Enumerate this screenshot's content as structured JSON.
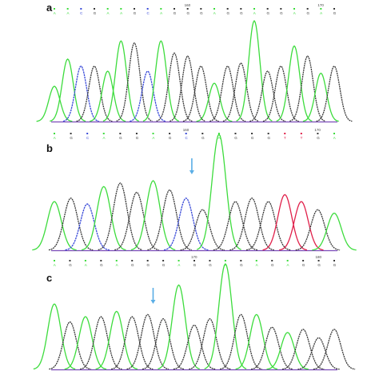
{
  "colors": {
    "A": "#3ddc3d",
    "C": "#3a4bd8",
    "G": "#3a3a3a",
    "T": "#e0204a",
    "arrow": "#5aaee6",
    "baseline": "#7a4bb8"
  },
  "chart_data": {
    "type": "line",
    "title": "",
    "xlabel": "",
    "ylabel": "",
    "legend": "none",
    "grid": false,
    "panels": [
      {
        "label": "a",
        "position_markers": [
          "",
          "",
          "",
          "",
          "",
          "",
          "",
          "",
          "",
          "",
          "",
          "",
          "",
          "",
          "",
          "",
          "",
          "",
          "",
          "",
          "",
          "",
          ""
        ],
        "marker_numbers": [
          "160",
          "170"
        ],
        "peaks": [
          {
            "base": "A",
            "h": 0.35
          },
          {
            "base": "A",
            "h": 0.62
          },
          {
            "base": "C",
            "h": 0.55
          },
          {
            "base": "G",
            "h": 0.55
          },
          {
            "base": "A",
            "h": 0.5
          },
          {
            "base": "A",
            "h": 0.8
          },
          {
            "base": "G",
            "h": 0.78
          },
          {
            "base": "C",
            "h": 0.5
          },
          {
            "base": "A",
            "h": 0.8
          },
          {
            "base": "G",
            "h": 0.68
          },
          {
            "base": "G",
            "h": 0.65
          },
          {
            "base": "G",
            "h": 0.55
          },
          {
            "base": "A",
            "h": 0.38
          },
          {
            "base": "G",
            "h": 0.55
          },
          {
            "base": "G",
            "h": 0.58
          },
          {
            "base": "A",
            "h": 1.0
          },
          {
            "base": "G",
            "h": 0.5
          },
          {
            "base": "G",
            "h": 0.55
          },
          {
            "base": "A",
            "h": 0.75
          },
          {
            "base": "G",
            "h": 0.65
          },
          {
            "base": "A",
            "h": 0.48
          },
          {
            "base": "G",
            "h": 0.55
          }
        ]
      },
      {
        "label": "b",
        "marker_numbers": [
          "160",
          "170"
        ],
        "arrow_peak": 8,
        "peaks": [
          {
            "base": "A",
            "h": 0.42
          },
          {
            "base": "G",
            "h": 0.45
          },
          {
            "base": "C",
            "h": 0.4
          },
          {
            "base": "A",
            "h": 0.55
          },
          {
            "base": "G",
            "h": 0.58
          },
          {
            "base": "G",
            "h": 0.5
          },
          {
            "base": "A",
            "h": 0.6
          },
          {
            "base": "G",
            "h": 0.52
          },
          {
            "base": "C",
            "h": 0.45
          },
          {
            "base": "G",
            "h": 0.35
          },
          {
            "base": "A",
            "h": 1.0
          },
          {
            "base": "G",
            "h": 0.42
          },
          {
            "base": "G",
            "h": 0.45
          },
          {
            "base": "G",
            "h": 0.42
          },
          {
            "base": "T",
            "h": 0.48
          },
          {
            "base": "T",
            "h": 0.42
          },
          {
            "base": "G",
            "h": 0.35
          },
          {
            "base": "A",
            "h": 0.32
          }
        ]
      },
      {
        "label": "c",
        "marker_numbers": [
          "170",
          "180"
        ],
        "arrow_peak": 6,
        "peaks": [
          {
            "base": "A",
            "h": 0.62
          },
          {
            "base": "G",
            "h": 0.45
          },
          {
            "base": "A",
            "h": 0.5
          },
          {
            "base": "G",
            "h": 0.5
          },
          {
            "base": "A",
            "h": 0.55
          },
          {
            "base": "G",
            "h": 0.5
          },
          {
            "base": "G",
            "h": 0.52
          },
          {
            "base": "G",
            "h": 0.48
          },
          {
            "base": "A",
            "h": 0.8
          },
          {
            "base": "G",
            "h": 0.42
          },
          {
            "base": "G",
            "h": 0.48
          },
          {
            "base": "A",
            "h": 1.0
          },
          {
            "base": "G",
            "h": 0.52
          },
          {
            "base": "A",
            "h": 0.52
          },
          {
            "base": "G",
            "h": 0.4
          },
          {
            "base": "A",
            "h": 0.35
          },
          {
            "base": "G",
            "h": 0.38
          },
          {
            "base": "G",
            "h": 0.3
          },
          {
            "base": "G",
            "h": 0.38
          }
        ]
      }
    ]
  }
}
